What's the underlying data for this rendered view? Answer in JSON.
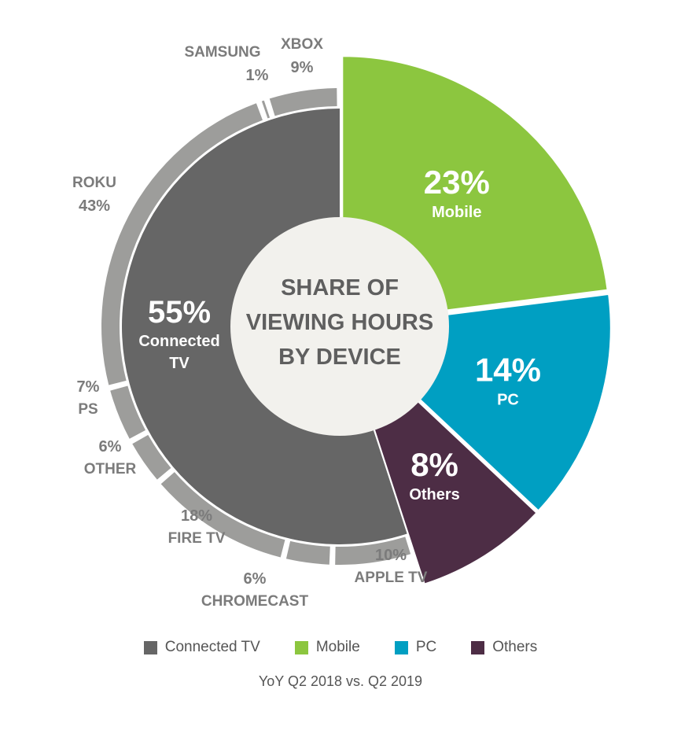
{
  "chart_data": {
    "type": "pie",
    "title": "SHARE OF VIEWING HOURS BY DEVICE",
    "title_lines": [
      "SHARE OF",
      "VIEWING HOURS",
      "BY DEVICE"
    ],
    "subtitle": "YoY Q2 2018 vs. Q2 2019",
    "slices": [
      {
        "name": "Mobile",
        "value": 23,
        "label": "23%",
        "color": "#8cc63f"
      },
      {
        "name": "PC",
        "value": 14,
        "label": "14%",
        "color": "#009fc2"
      },
      {
        "name": "Others",
        "value": 8,
        "label": "8%",
        "color": "#4d2d45"
      },
      {
        "name": "Connected TV",
        "value": 55,
        "label": "55%",
        "label_lines": [
          "Connected",
          "TV"
        ],
        "color": "#666666"
      }
    ],
    "connected_tv_breakdown": [
      {
        "name": "APPLE TV",
        "value": 10,
        "label": "10%"
      },
      {
        "name": "CHROMECAST",
        "value": 6,
        "label": "6%"
      },
      {
        "name": "FIRE TV",
        "value": 18,
        "label": "18%"
      },
      {
        "name": "OTHER",
        "value": 6,
        "label": "6%"
      },
      {
        "name": "PS",
        "value": 7,
        "label": "7%"
      },
      {
        "name": "ROKU",
        "value": 43,
        "label": "43%"
      },
      {
        "name": "SAMSUNG",
        "value": 1,
        "label": "1%"
      },
      {
        "name": "XBOX",
        "value": 9,
        "label": "9%"
      }
    ],
    "ring_color": "#9d9d9b",
    "legend": [
      {
        "name": "Connected TV",
        "color": "#666666"
      },
      {
        "name": "Mobile",
        "color": "#8cc63f"
      },
      {
        "name": "PC",
        "color": "#009fc2"
      },
      {
        "name": "Others",
        "color": "#4d2d45"
      }
    ],
    "legend_position": "bottom"
  }
}
